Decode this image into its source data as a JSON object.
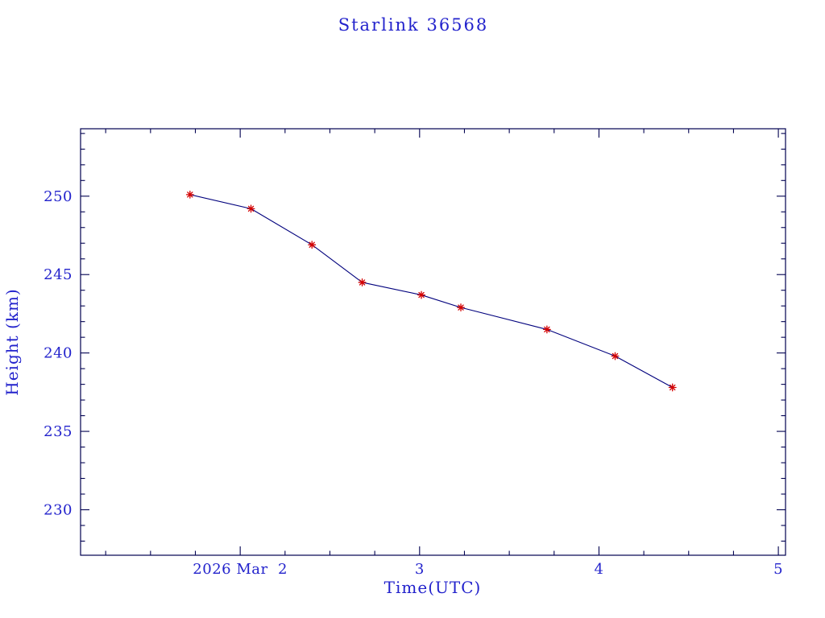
{
  "page": {
    "background": "#ffffff"
  },
  "chart_data": {
    "type": "line",
    "title": "Starlink 36568",
    "xlabel": "Time(UTC)",
    "ylabel": "Height (km)",
    "series": [
      {
        "name": "Starlink 36568 height",
        "x": [
          1.72,
          2.06,
          2.4,
          2.68,
          3.01,
          3.23,
          3.71,
          4.09,
          4.41
        ],
        "y": [
          250.1,
          249.2,
          246.9,
          244.5,
          243.7,
          242.9,
          241.5,
          239.8,
          237.8
        ]
      }
    ],
    "x": [
      1.72,
      2.06,
      2.4,
      2.68,
      3.01,
      3.23,
      3.71,
      4.09,
      4.41
    ],
    "y": [
      250.1,
      249.2,
      246.9,
      244.5,
      243.7,
      242.9,
      241.5,
      239.8,
      237.8
    ],
    "xlim": [
      1.11,
      5.04
    ],
    "ylim": [
      227.1,
      254.3
    ],
    "xticks": [
      {
        "value": 2,
        "label": "2026 Mar  2"
      },
      {
        "value": 3,
        "label": "3"
      },
      {
        "value": 4,
        "label": "4"
      },
      {
        "value": 5,
        "label": "5"
      }
    ],
    "yticks": [
      230,
      235,
      240,
      245,
      250
    ],
    "x_minor_step": 0.25,
    "y_minor_step": 1,
    "grid": false,
    "legend": "none",
    "marker": "asterisk",
    "marker_color": "#d40000",
    "line_color": "#00007d",
    "axis_color": "#000050",
    "text_color": "#2222cc"
  }
}
